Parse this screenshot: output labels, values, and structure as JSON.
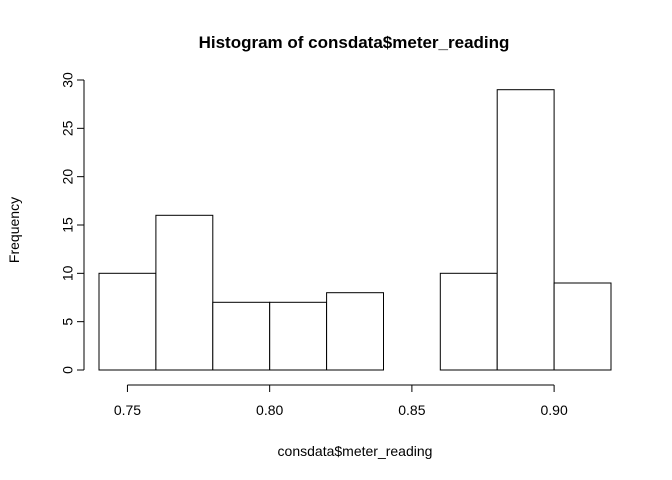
{
  "chart_data": {
    "type": "bar",
    "title": "Histogram of consdata$meter_reading",
    "xlabel": "consdata$meter_reading",
    "ylabel": "Frequency",
    "bins": [
      {
        "start": 0.74,
        "end": 0.76,
        "count": 10
      },
      {
        "start": 0.76,
        "end": 0.78,
        "count": 16
      },
      {
        "start": 0.78,
        "end": 0.8,
        "count": 7
      },
      {
        "start": 0.8,
        "end": 0.82,
        "count": 7
      },
      {
        "start": 0.82,
        "end": 0.84,
        "count": 8
      },
      {
        "start": 0.84,
        "end": 0.86,
        "count": 0
      },
      {
        "start": 0.86,
        "end": 0.88,
        "count": 10
      },
      {
        "start": 0.88,
        "end": 0.9,
        "count": 29
      },
      {
        "start": 0.9,
        "end": 0.92,
        "count": 9
      }
    ],
    "xlim": [
      0.74,
      0.92
    ],
    "ylim": [
      0,
      30
    ],
    "xticks": [
      0.75,
      0.8,
      0.85,
      0.9
    ],
    "xtick_labels": [
      "0.75",
      "0.80",
      "0.85",
      "0.90"
    ],
    "yticks": [
      0,
      5,
      10,
      15,
      20,
      25,
      30
    ],
    "ytick_labels": [
      "0",
      "5",
      "10",
      "15",
      "20",
      "25",
      "30"
    ],
    "grid": false,
    "bar_fill": "#ffffff",
    "bar_stroke": "#000000"
  }
}
